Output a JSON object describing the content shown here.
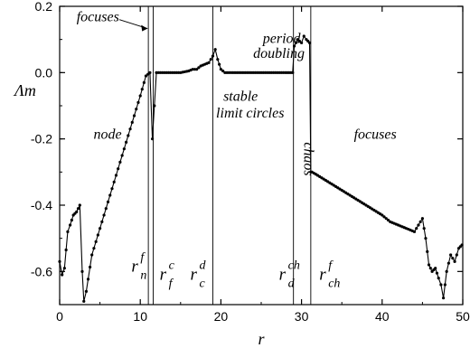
{
  "chart_data": {
    "type": "line",
    "title": "",
    "xlabel": "r",
    "ylabel": "Λm",
    "xlim": [
      0,
      50
    ],
    "ylim": [
      -0.7,
      0.2
    ],
    "xticks": [
      "0",
      "10",
      "20",
      "30",
      "40",
      "50"
    ],
    "yticks": [
      "0.2",
      "0.0",
      "-0.2",
      "-0.4",
      "-0.6"
    ],
    "grid": false,
    "legend": "none",
    "line_color": "#000000",
    "series": [
      {
        "x": [
          0,
          0.3,
          0.6,
          1.0,
          1.3,
          1.7,
          2.1,
          2.5,
          2.8,
          3.0,
          3.3,
          4,
          5,
          6,
          7,
          8,
          9,
          10,
          10.7,
          11.2,
          11.5,
          12,
          13,
          14,
          15,
          16,
          16.5,
          17,
          17.5,
          18,
          18.5,
          19,
          19.3,
          19.6,
          20,
          20.5,
          21,
          23,
          25,
          27,
          28,
          28.9,
          29.1,
          29.5,
          30,
          30.3,
          30.6,
          31,
          31.15,
          31.3,
          32,
          34,
          36,
          38,
          40,
          41,
          42,
          43,
          44,
          44.5,
          45,
          45.4,
          45.8,
          46.2,
          46.6,
          47,
          47.3,
          47.6,
          48,
          48.5,
          49,
          49.5,
          49.9
        ],
        "y": [
          -0.57,
          -0.61,
          -0.59,
          -0.48,
          -0.46,
          -0.43,
          -0.42,
          -0.4,
          -0.6,
          -0.69,
          -0.66,
          -0.55,
          -0.47,
          -0.39,
          -0.31,
          -0.23,
          -0.15,
          -0.07,
          -0.01,
          0.0,
          -0.2,
          0.0,
          0.0,
          0.0,
          0.0,
          0.005,
          0.01,
          0.01,
          0.02,
          0.025,
          0.03,
          0.05,
          0.07,
          0.04,
          0.01,
          0.0,
          0.0,
          0.0,
          0.0,
          0.0,
          0.0,
          0.0,
          0.08,
          0.1,
          0.09,
          0.11,
          0.1,
          0.09,
          -0.3,
          -0.3,
          -0.31,
          -0.34,
          -0.37,
          -0.4,
          -0.43,
          -0.45,
          -0.46,
          -0.47,
          -0.48,
          -0.46,
          -0.44,
          -0.5,
          -0.58,
          -0.6,
          -0.59,
          -0.62,
          -0.64,
          -0.68,
          -0.6,
          -0.55,
          -0.57,
          -0.53,
          -0.52
        ]
      }
    ],
    "vlines": [
      11.0,
      11.6,
      19.0,
      29.0,
      31.15
    ],
    "region_labels": [
      {
        "text": "focuses",
        "x": 2.1,
        "y": 0.155
      },
      {
        "text": "node",
        "x": 4.2,
        "y": -0.2
      },
      {
        "text": "stable",
        "x": 20.3,
        "y": -0.085
      },
      {
        "text": "limit circles",
        "x": 19.4,
        "y": -0.135
      },
      {
        "text": "period",
        "x": 25.2,
        "y": 0.09
      },
      {
        "text": "doubling",
        "x": 24.0,
        "y": 0.045
      },
      {
        "text": "chaos",
        "x": 30.35,
        "y": -0.21
      },
      {
        "text": "focuses",
        "x": 36.5,
        "y": -0.2
      }
    ],
    "r_labels": [
      {
        "main": "r",
        "sup": "f",
        "sub": "n",
        "x": 8.9,
        "y": -0.6
      },
      {
        "main": "r",
        "sup": "c",
        "sub": "f",
        "x": 12.4,
        "y": -0.625
      },
      {
        "main": "r",
        "sup": "d",
        "sub": "c",
        "x": 16.2,
        "y": -0.625
      },
      {
        "main": "r",
        "sup": "ch",
        "sub": "d",
        "x": 27.2,
        "y": -0.625
      },
      {
        "main": "r",
        "sup": "f",
        "sub": "ch",
        "x": 32.2,
        "y": -0.625
      }
    ]
  }
}
